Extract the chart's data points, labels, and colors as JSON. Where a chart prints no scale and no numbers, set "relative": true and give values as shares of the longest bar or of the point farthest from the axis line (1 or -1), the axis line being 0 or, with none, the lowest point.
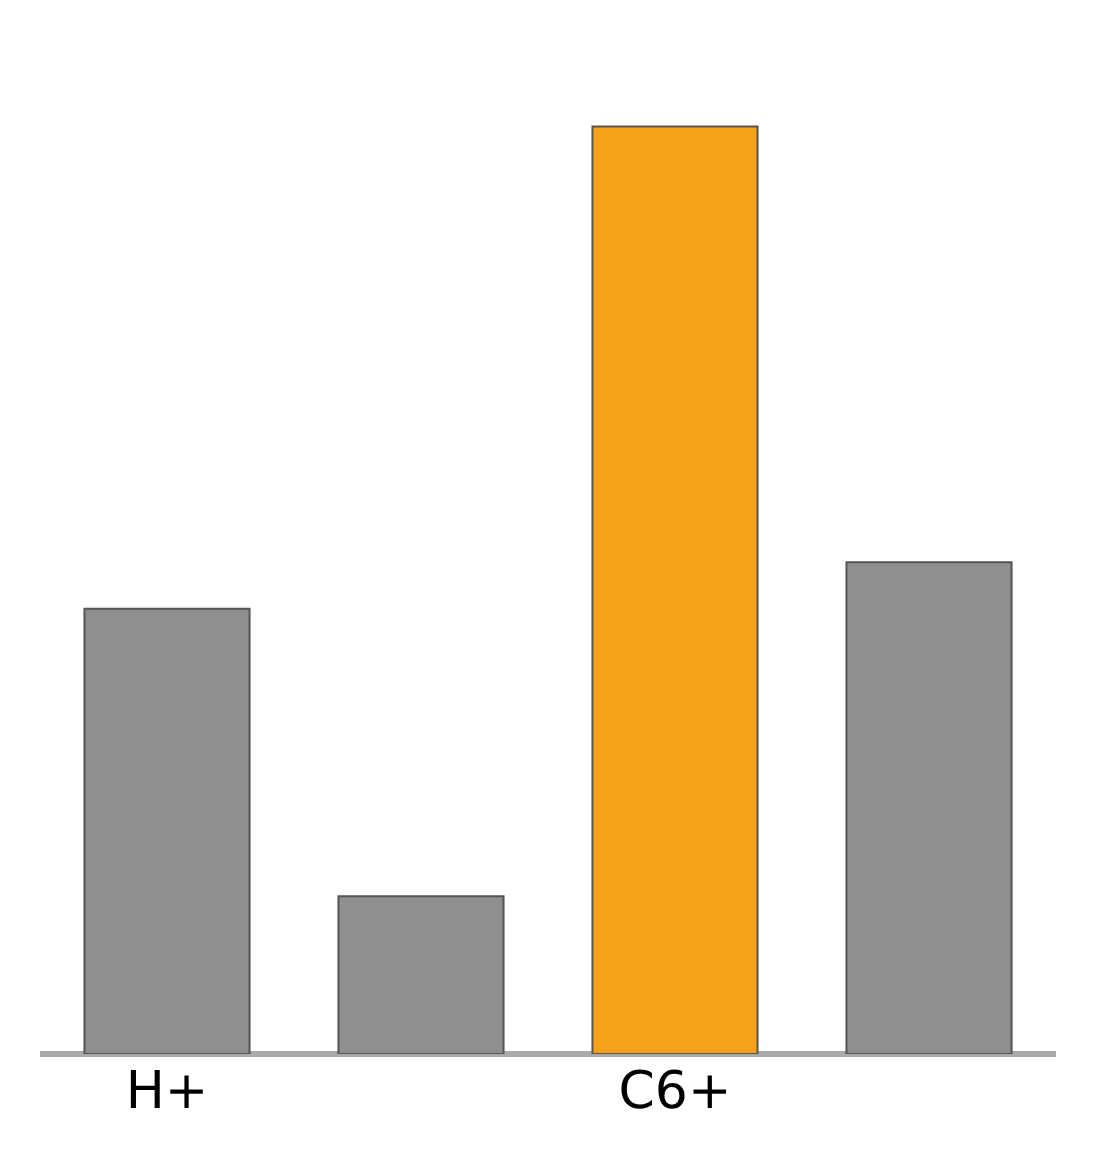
{
  "chart_data": {
    "type": "bar",
    "relative": true,
    "categories": [
      "H+",
      null,
      "C6+",
      null
    ],
    "values": [
      0.48,
      0.17,
      1,
      0.53
    ],
    "colors": [
      "#8f8f8f",
      "#8f8f8f",
      "#f7a11a",
      "#8f8f8f"
    ]
  }
}
